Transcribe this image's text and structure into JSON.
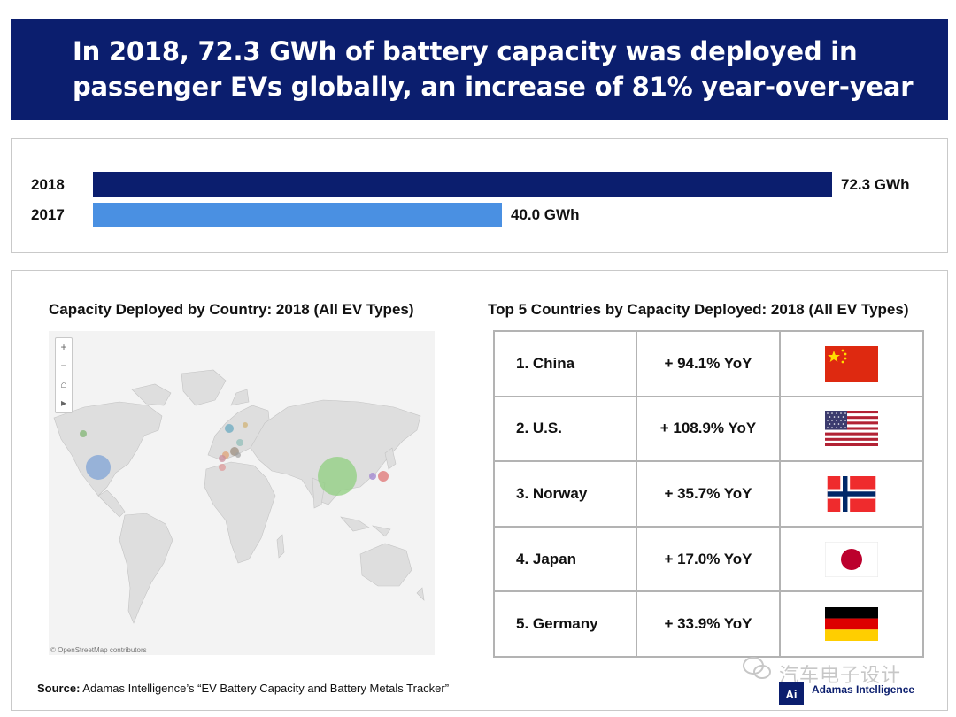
{
  "title": {
    "line1": "In 2018, 72.3 GWh of battery capacity was deployed in",
    "line2": "passenger EVs globally, an increase of 81% year-over-year"
  },
  "chart_data": [
    {
      "type": "bar",
      "orientation": "horizontal",
      "categories": [
        "2018",
        "2017"
      ],
      "values": [
        72.3,
        40.0
      ],
      "value_labels": [
        "72.3 GWh",
        "40.0 GWh"
      ],
      "unit": "GWh",
      "colors": [
        "#0b1e6e",
        "#4a90e2"
      ],
      "xlim": [
        0,
        72.3
      ]
    },
    {
      "type": "table",
      "title": "Top 5 Countries by Capacity Deployed: 2018 (All EV Types)",
      "rows": [
        {
          "rank": "1. China",
          "yoy": "+ 94.1% YoY",
          "flag": "china-flag"
        },
        {
          "rank": "2. U.S.",
          "yoy": "+ 108.9% YoY",
          "flag": "us-flag"
        },
        {
          "rank": "3. Norway",
          "yoy": "+ 35.7% YoY",
          "flag": "norway-flag"
        },
        {
          "rank": "4. Japan",
          "yoy": "+ 17.0% YoY",
          "flag": "japan-flag"
        },
        {
          "rank": "5. Germany",
          "yoy": "+ 33.9% YoY",
          "flag": "germany-flag"
        }
      ]
    }
  ],
  "map": {
    "title": "Capacity Deployed by Country: 2018 (All EV Types)",
    "credit": "© OpenStreetMap contributors",
    "controls": [
      "+",
      "−",
      "⌂",
      "▸"
    ]
  },
  "source": {
    "label": "Source:",
    "text": " Adamas Intelligence’s “EV Battery Capacity and Battery Metals Tracker”"
  },
  "branding": {
    "logo": "Ai",
    "name": "Adamas Intelligence",
    "watermark": "汽车电子设计"
  },
  "colors": {
    "banner": "#0b1e6e",
    "bar2018": "#0b1e6e",
    "bar2017": "#4a90e2"
  }
}
